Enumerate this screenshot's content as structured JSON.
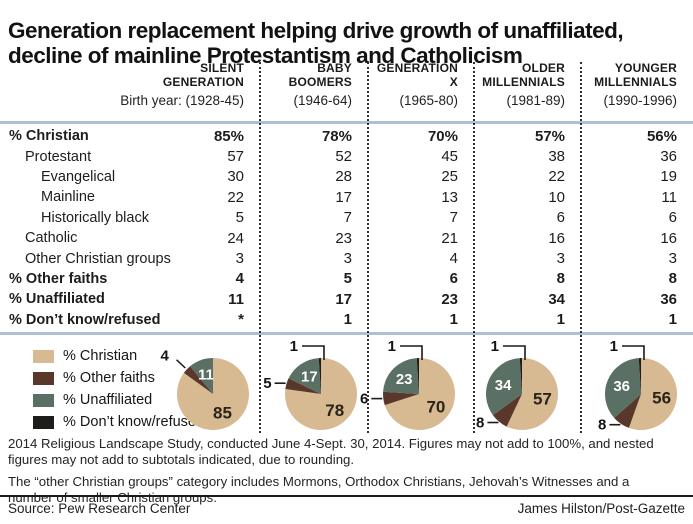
{
  "title": {
    "line1": "Generation replacement helping drive growth of unaffiliated,",
    "line2": "decline of mainline Protestantism and Catholicism"
  },
  "colors": {
    "christian": "#d7ba91",
    "other_faiths": "#59372a",
    "unaffiliated": "#5a7065",
    "dont_know_refused": "#1d1d1b",
    "rule_blue": "#afc0d5",
    "rule_black": "#1a1a1a",
    "pie_dark_label": "#2b2318",
    "pie_white_label": "#ffffff"
  },
  "columns": [
    {
      "name_line1": "SILENT",
      "name_line2": "GENERATION",
      "birth_year": "Birth year: (1928-45)"
    },
    {
      "name_line1": "BABY",
      "name_line2": "BOOMERS",
      "birth_year": "(1946-64)"
    },
    {
      "name_line1": "GENERATION",
      "name_line2": "X",
      "birth_year": "(1965-80)"
    },
    {
      "name_line1": "OLDER",
      "name_line2": "MILLENNIALS",
      "birth_year": "(1981-89)"
    },
    {
      "name_line1": "YOUNGER",
      "name_line2": "MILLENNIALS",
      "birth_year": "(1990-1996)"
    }
  ],
  "table": {
    "rows": [
      {
        "label": "% Christian",
        "indent": 0,
        "bold": true,
        "values": [
          "85%",
          "78%",
          "70%",
          "57%",
          "56%"
        ]
      },
      {
        "label": "Protestant",
        "indent": 1,
        "bold": false,
        "values": [
          "57",
          "52",
          "45",
          "38",
          "36"
        ]
      },
      {
        "label": "Evangelical",
        "indent": 2,
        "bold": false,
        "values": [
          "30",
          "28",
          "25",
          "22",
          "19"
        ]
      },
      {
        "label": "Mainline",
        "indent": 2,
        "bold": false,
        "values": [
          "22",
          "17",
          "13",
          "10",
          "11"
        ]
      },
      {
        "label": "Historically black",
        "indent": 2,
        "bold": false,
        "values": [
          "5",
          "7",
          "7",
          "6",
          "6"
        ]
      },
      {
        "label": "Catholic",
        "indent": 1,
        "bold": false,
        "values": [
          "24",
          "23",
          "21",
          "16",
          "16"
        ]
      },
      {
        "label": "Other Christian groups",
        "indent": 1,
        "bold": false,
        "values": [
          "3",
          "3",
          "4",
          "3",
          "3"
        ]
      },
      {
        "label": "% Other faiths",
        "indent": 0,
        "bold": true,
        "values": [
          "4",
          "5",
          "6",
          "8",
          "8"
        ]
      },
      {
        "label": "% Unaffiliated",
        "indent": 0,
        "bold": true,
        "values": [
          "11",
          "17",
          "23",
          "34",
          "36"
        ]
      },
      {
        "label": "% Don’t know/refused",
        "indent": 0,
        "bold": true,
        "values": [
          "*",
          "1",
          "1",
          "1",
          "1"
        ]
      }
    ]
  },
  "legend": {
    "items": [
      {
        "label": "% Christian",
        "color_key": "christian"
      },
      {
        "label": "% Other faiths",
        "color_key": "other_faiths"
      },
      {
        "label": "% Unaffiliated",
        "color_key": "unaffiliated"
      },
      {
        "label": "% Don’t know/refused",
        "color_key": "dont_know_refused"
      }
    ]
  },
  "footnotes": {
    "para1": "2014 Religious Landscape Study, conducted June 4-Sept. 30, 2014. Figures may not add to 100%, and nested figures may not add to subtotals indicated, due to rounding.",
    "para2": "The “other Christian groups” category includes Mormons, Orthodox Christians, Jehovah’s Witnesses and a number of smaller Christian groups."
  },
  "source": {
    "left": "Source: Pew Research Center",
    "right": "James Hilston/Post-Gazette"
  },
  "chart_data": [
    {
      "type": "table",
      "title": "Generation replacement helping drive growth of unaffiliated, decline of mainline Protestantism and Catholicism",
      "columns": [
        "Silent Generation (1928-45)",
        "Baby Boomers (1946-64)",
        "Generation X (1965-80)",
        "Older Millennials (1981-89)",
        "Younger Millennials (1990-1996)"
      ],
      "rows": [
        {
          "label": "% Christian",
          "values": [
            85,
            78,
            70,
            57,
            56
          ]
        },
        {
          "label": "Protestant",
          "values": [
            57,
            52,
            45,
            38,
            36
          ]
        },
        {
          "label": "Evangelical",
          "values": [
            30,
            28,
            25,
            22,
            19
          ]
        },
        {
          "label": "Mainline",
          "values": [
            22,
            17,
            13,
            10,
            11
          ]
        },
        {
          "label": "Historically black",
          "values": [
            5,
            7,
            7,
            6,
            6
          ]
        },
        {
          "label": "Catholic",
          "values": [
            24,
            23,
            21,
            16,
            16
          ]
        },
        {
          "label": "Other Christian groups",
          "values": [
            3,
            3,
            4,
            3,
            3
          ]
        },
        {
          "label": "% Other faiths",
          "values": [
            4,
            5,
            6,
            8,
            8
          ]
        },
        {
          "label": "% Unaffiliated",
          "values": [
            11,
            17,
            23,
            34,
            36
          ]
        },
        {
          "label": "% Don’t know/refused",
          "values": [
            "*",
            1,
            1,
            1,
            1
          ]
        }
      ]
    },
    {
      "type": "pie",
      "legend": [
        "% Christian",
        "% Other faiths",
        "% Unaffiliated",
        "% Don’t know/refused"
      ],
      "series": [
        {
          "name": "Silent Generation",
          "christian": 85,
          "other_faiths": 4,
          "unaffiliated": 11,
          "dont_know_refused": 0
        },
        {
          "name": "Baby Boomers",
          "christian": 78,
          "other_faiths": 5,
          "unaffiliated": 17,
          "dont_know_refused": 1
        },
        {
          "name": "Generation X",
          "christian": 70,
          "other_faiths": 6,
          "unaffiliated": 23,
          "dont_know_refused": 1
        },
        {
          "name": "Older Millennials",
          "christian": 57,
          "other_faiths": 8,
          "unaffiliated": 34,
          "dont_know_refused": 1
        },
        {
          "name": "Younger Millennials",
          "christian": 56,
          "other_faiths": 8,
          "unaffiliated": 36,
          "dont_know_refused": 1
        }
      ]
    }
  ]
}
